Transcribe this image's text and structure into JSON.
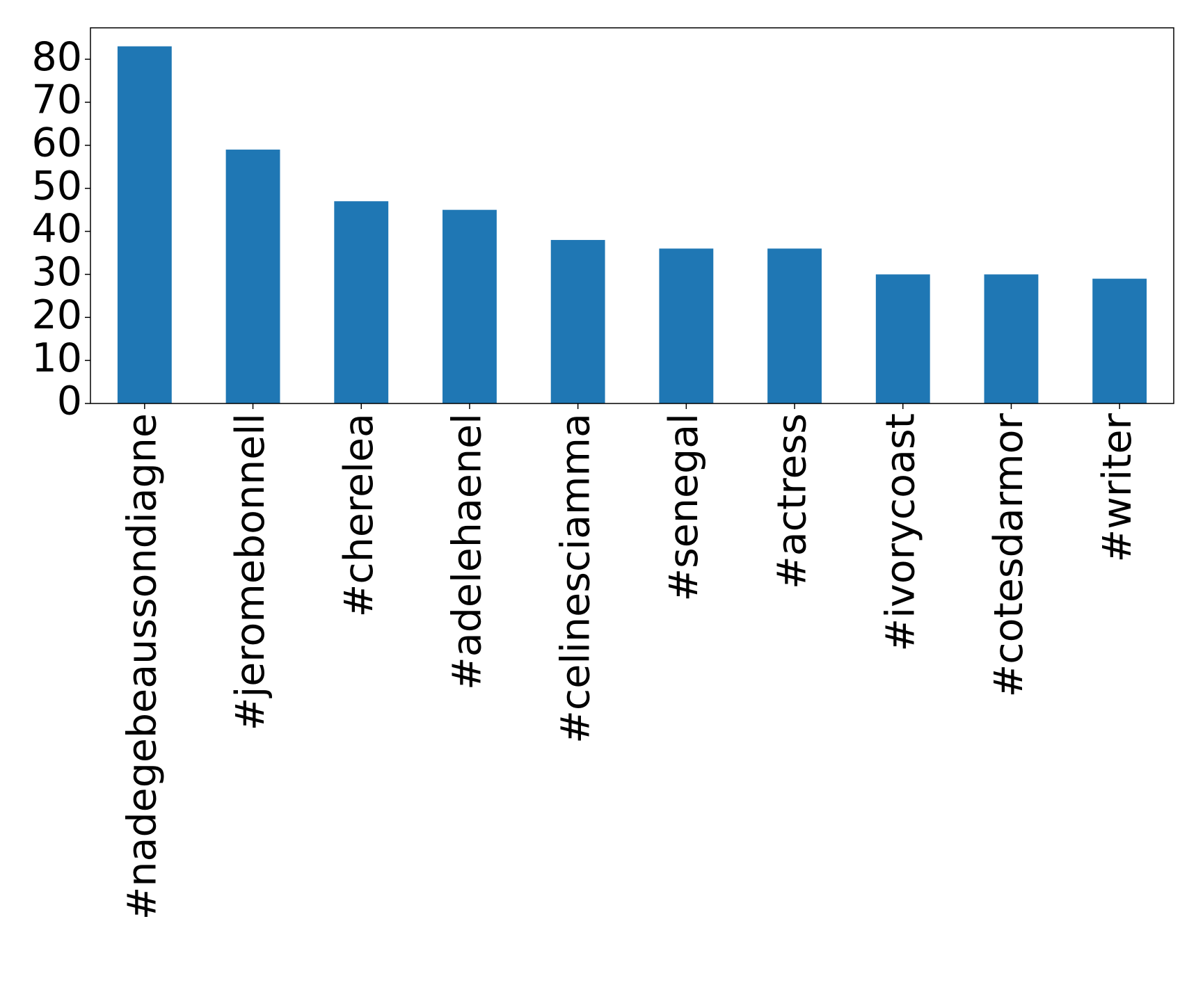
{
  "chart_data": {
    "type": "bar",
    "categories": [
      "#nadegebeaussondiagne",
      "#jeromebonnell",
      "#cherelea",
      "#adelehaenel",
      "#celinesciamma",
      "#senegal",
      "#actress",
      "#ivorycoast",
      "#cotesdarmor",
      "#writer"
    ],
    "values": [
      83,
      59,
      47,
      45,
      38,
      36,
      36,
      30,
      30,
      29
    ],
    "color": "#1f77b4",
    "ylim": [
      0,
      87.3
    ],
    "yticks": [
      0,
      10,
      20,
      30,
      40,
      50,
      60,
      70,
      80
    ]
  }
}
